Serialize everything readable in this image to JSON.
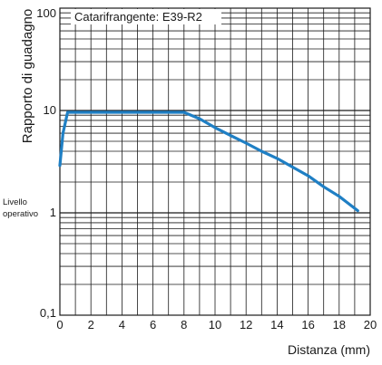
{
  "chart_data": {
    "type": "line",
    "legend": "Catarifrangente: E39-R2",
    "xlabel": "Distanza (mm)",
    "ylabel": "Rapporto di guadagno",
    "xlim": [
      0,
      20
    ],
    "ylim": [
      0.1,
      100
    ],
    "y_scale": "log",
    "grid": true,
    "x_ticks": [
      "0",
      "2",
      "4",
      "6",
      "8",
      "10",
      "12",
      "14",
      "16",
      "18",
      "20"
    ],
    "y_ticks": [
      "0,1",
      "1",
      "10",
      "100"
    ],
    "annotations": [
      {
        "lines": [
          "Livello",
          "operativo"
        ],
        "at_y": 1
      }
    ],
    "color": "#1f7fc4",
    "series": [
      {
        "x": [
          0,
          0.2,
          0.5,
          1,
          3,
          5,
          7,
          8,
          9,
          10,
          11,
          12,
          13,
          14,
          15,
          16,
          17,
          18,
          19.2
        ],
        "values": [
          2.9,
          6,
          9.6,
          9.6,
          9.6,
          9.6,
          9.6,
          9.6,
          8.3,
          6.8,
          5.7,
          4.8,
          4.0,
          3.4,
          2.8,
          2.3,
          1.8,
          1.45,
          1.05
        ]
      }
    ]
  }
}
